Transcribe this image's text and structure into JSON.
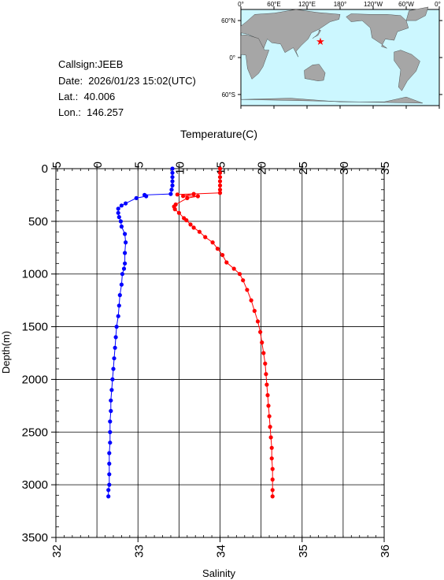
{
  "station": {
    "callsign": "Callsign:JEEB",
    "date": "Date:  2026/01/23 15:02(UTC)",
    "lat": "Lat.:  40.006",
    "lon": "Lon.:  146.257"
  },
  "map": {
    "top_ticks": [
      "0°",
      "60°E",
      "120°E",
      "180°",
      "120°W",
      "60°W",
      "0°"
    ],
    "lat_ticks": [
      "60°N",
      "0°",
      "60°S"
    ],
    "ocean_color": "#ccf7ff",
    "land_color": "#a6a6a6",
    "marker_color": "#ff0000",
    "marker_icon": "star-icon"
  },
  "chart_data": {
    "type": "scatter",
    "title": "",
    "ylabel": "Depth(m)",
    "ylim": [
      0,
      3500
    ],
    "yticks": [
      0,
      500,
      1000,
      1500,
      2000,
      2500,
      3000,
      3500
    ],
    "y_inverted": true,
    "grid": true,
    "temperature_axis": {
      "label": "Temperature(C)",
      "position": "top",
      "range": [
        -5,
        35
      ],
      "ticks": [
        -5,
        0,
        5,
        10,
        15,
        20,
        25,
        30,
        35
      ]
    },
    "salinity_axis": {
      "label": "Salinity",
      "position": "bottom",
      "range": [
        32,
        36
      ],
      "ticks": [
        32,
        33,
        34,
        35,
        36
      ]
    },
    "series": [
      {
        "axis": "temperature",
        "color": "#ff0000",
        "points": [
          [
            15.0,
            0
          ],
          [
            15.0,
            40
          ],
          [
            15.0,
            80
          ],
          [
            15.0,
            120
          ],
          [
            15.0,
            160
          ],
          [
            15.0,
            200
          ],
          [
            15.0,
            230
          ],
          [
            9.8,
            245
          ],
          [
            11.8,
            240
          ],
          [
            10.5,
            260
          ],
          [
            12.3,
            262
          ],
          [
            11.0,
            280
          ],
          [
            9.6,
            340
          ],
          [
            9.4,
            360
          ],
          [
            9.5,
            385
          ],
          [
            10.0,
            420
          ],
          [
            10.6,
            470
          ],
          [
            10.9,
            490
          ],
          [
            11.4,
            530
          ],
          [
            11.8,
            560
          ],
          [
            12.5,
            600
          ],
          [
            13.2,
            650
          ],
          [
            14.1,
            700
          ],
          [
            14.7,
            760
          ],
          [
            15.3,
            820
          ],
          [
            15.8,
            890
          ],
          [
            16.7,
            950
          ],
          [
            17.4,
            1000
          ],
          [
            17.8,
            1060
          ],
          [
            18.3,
            1150
          ],
          [
            18.8,
            1250
          ],
          [
            19.2,
            1350
          ],
          [
            19.6,
            1450
          ],
          [
            19.9,
            1550
          ],
          [
            20.1,
            1650
          ],
          [
            20.3,
            1750
          ],
          [
            20.5,
            1850
          ],
          [
            20.6,
            1950
          ],
          [
            20.7,
            2050
          ],
          [
            20.8,
            2150
          ],
          [
            20.9,
            2250
          ],
          [
            21.0,
            2350
          ],
          [
            21.1,
            2450
          ],
          [
            21.2,
            2550
          ],
          [
            21.3,
            2650
          ],
          [
            21.3,
            2750
          ],
          [
            21.4,
            2850
          ],
          [
            21.4,
            2950
          ],
          [
            21.4,
            3050
          ],
          [
            21.4,
            3110
          ]
        ]
      },
      {
        "axis": "salinity",
        "color": "#0000ff",
        "points": [
          [
            33.42,
            0
          ],
          [
            33.42,
            40
          ],
          [
            33.42,
            80
          ],
          [
            33.42,
            120
          ],
          [
            33.42,
            160
          ],
          [
            33.41,
            200
          ],
          [
            33.4,
            240
          ],
          [
            33.08,
            250
          ],
          [
            33.1,
            262
          ],
          [
            32.98,
            280
          ],
          [
            32.85,
            330
          ],
          [
            32.8,
            350
          ],
          [
            32.76,
            380
          ],
          [
            32.76,
            420
          ],
          [
            32.77,
            460
          ],
          [
            32.79,
            500
          ],
          [
            32.8,
            550
          ],
          [
            32.84,
            620
          ],
          [
            32.85,
            700
          ],
          [
            32.84,
            800
          ],
          [
            32.84,
            900
          ],
          [
            32.83,
            950
          ],
          [
            32.81,
            1000
          ],
          [
            32.8,
            1100
          ],
          [
            32.78,
            1200
          ],
          [
            32.77,
            1300
          ],
          [
            32.76,
            1400
          ],
          [
            32.74,
            1500
          ],
          [
            32.73,
            1600
          ],
          [
            32.72,
            1700
          ],
          [
            32.71,
            1800
          ],
          [
            32.7,
            1900
          ],
          [
            32.69,
            2000
          ],
          [
            32.68,
            2100
          ],
          [
            32.67,
            2200
          ],
          [
            32.67,
            2300
          ],
          [
            32.66,
            2400
          ],
          [
            32.66,
            2500
          ],
          [
            32.66,
            2600
          ],
          [
            32.65,
            2700
          ],
          [
            32.65,
            2800
          ],
          [
            32.65,
            2900
          ],
          [
            32.65,
            3000
          ],
          [
            32.64,
            3050
          ],
          [
            32.64,
            3110
          ]
        ]
      }
    ]
  }
}
